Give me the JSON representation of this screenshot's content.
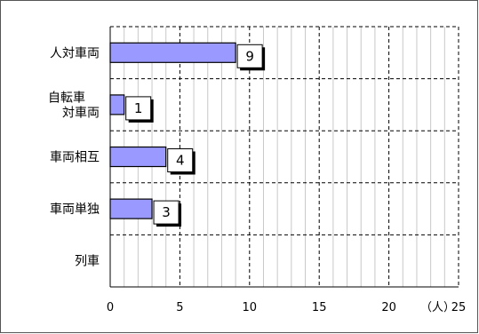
{
  "chart_data": {
    "type": "bar",
    "orientation": "horizontal",
    "categories": [
      "人対車両",
      "自転車\n対車両",
      "車両相互",
      "車両単独",
      "列車"
    ],
    "values": [
      9,
      1,
      4,
      3,
      0
    ],
    "data_labels": [
      "9",
      "1",
      "4",
      "3",
      ""
    ],
    "x_unit": "（人）",
    "xlim": [
      0,
      25
    ],
    "x_ticks": [
      0,
      5,
      10,
      15,
      20,
      25
    ],
    "minor_step": 1,
    "grid": true,
    "legend": "none",
    "colors": {
      "bar": "#9999ff",
      "bar_edge": "#000000",
      "grid_major": "#000000",
      "grid_minor": "#c8c8c8"
    }
  }
}
